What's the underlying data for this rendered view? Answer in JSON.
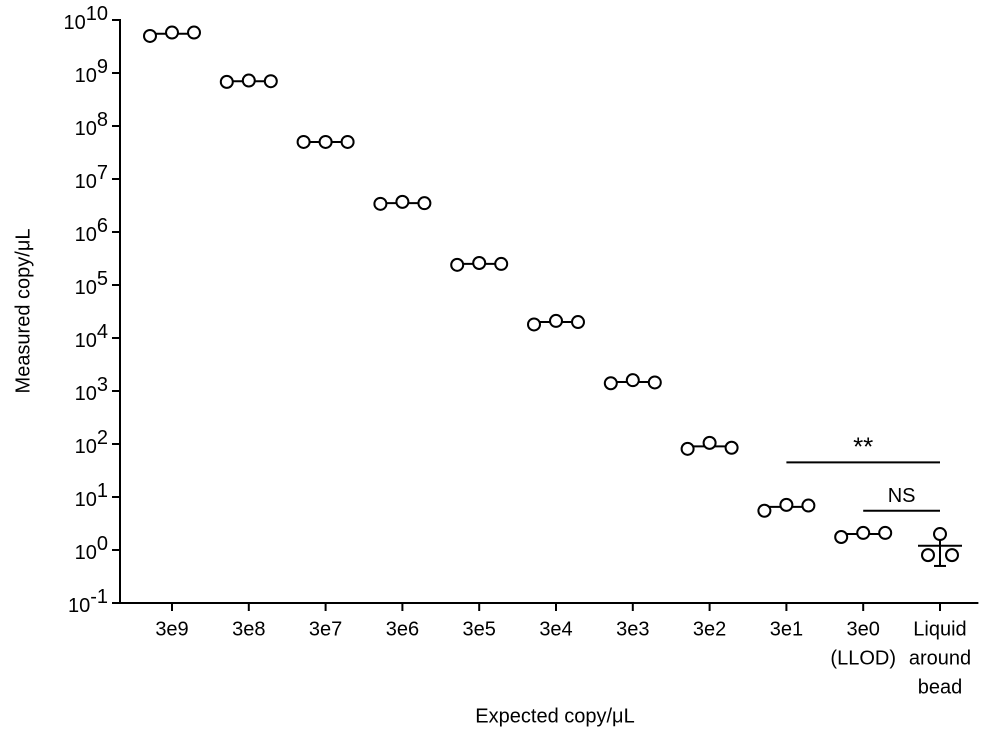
{
  "chart_data": {
    "type": "dotplot",
    "x_label": "Expected copy/μL",
    "y_label": "Measured copy/μL",
    "log_y": true,
    "categories": [
      "3e9",
      "3e8",
      "3e7",
      "3e6",
      "3e5",
      "3e4",
      "3e3",
      "3e2",
      "3e1",
      [
        "3e0",
        "(LLOD)"
      ],
      [
        "Liquid",
        "around",
        "bead"
      ]
    ],
    "points": [
      [
        5000000000,
        5800000000,
        5800000000
      ],
      [
        680000000,
        720000000,
        700000000
      ],
      [
        50000000,
        50000000,
        50000000
      ],
      [
        3400000,
        3700000,
        3500000
      ],
      [
        240000,
        260000,
        250000
      ],
      [
        18000,
        21000,
        20000
      ],
      [
        1400,
        1600,
        1450
      ],
      [
        81,
        105,
        85
      ],
      [
        5.5,
        7.1,
        6.9
      ],
      [
        1.76,
        2.1,
        2.1
      ],
      [
        0.8,
        2.0,
        0.8
      ]
    ],
    "mean": [
      5500000000,
      700000000,
      50000000,
      3500000,
      250000,
      20000,
      1480,
      90,
      6.5,
      2.0,
      1.2
    ],
    "error_low": [
      5000000000,
      680000000,
      49000000,
      3400000,
      240000,
      18500,
      1400,
      80,
      5.6,
      1.8,
      0.5
    ],
    "error_high": [
      5900000000,
      720000000,
      51000000,
      3600000,
      260000,
      21000,
      1550,
      100,
      7.2,
      2.2,
      2.15
    ],
    "color": "#000000",
    "ylim": [
      0.1,
      10000000000
    ],
    "yticks": [
      {
        "value": 0.1,
        "label": "10",
        "exponent": "-1"
      },
      {
        "value": 1,
        "label": "10",
        "exponent": "0"
      },
      {
        "value": 10,
        "label": "10",
        "exponent": "1"
      },
      {
        "value": 100,
        "label": "10",
        "exponent": "2"
      },
      {
        "value": 1000,
        "label": "10",
        "exponent": "3"
      },
      {
        "value": 10000,
        "label": "10",
        "exponent": "4"
      },
      {
        "value": 100000,
        "label": "10",
        "exponent": "5"
      },
      {
        "value": 1000000,
        "label": "10",
        "exponent": "6"
      },
      {
        "value": 10000000,
        "label": "10",
        "exponent": "7"
      },
      {
        "value": 100000000,
        "label": "10",
        "exponent": "8"
      },
      {
        "value": 1000000000,
        "label": "10",
        "exponent": "9"
      },
      {
        "value": 10000000000,
        "label": "10",
        "exponent": "10"
      }
    ],
    "annotations": [
      {
        "text": "**",
        "from": 8,
        "to": 10,
        "y": 45
      },
      {
        "text": "NS",
        "from": 9,
        "to": 10,
        "y": 5.5
      }
    ]
  }
}
